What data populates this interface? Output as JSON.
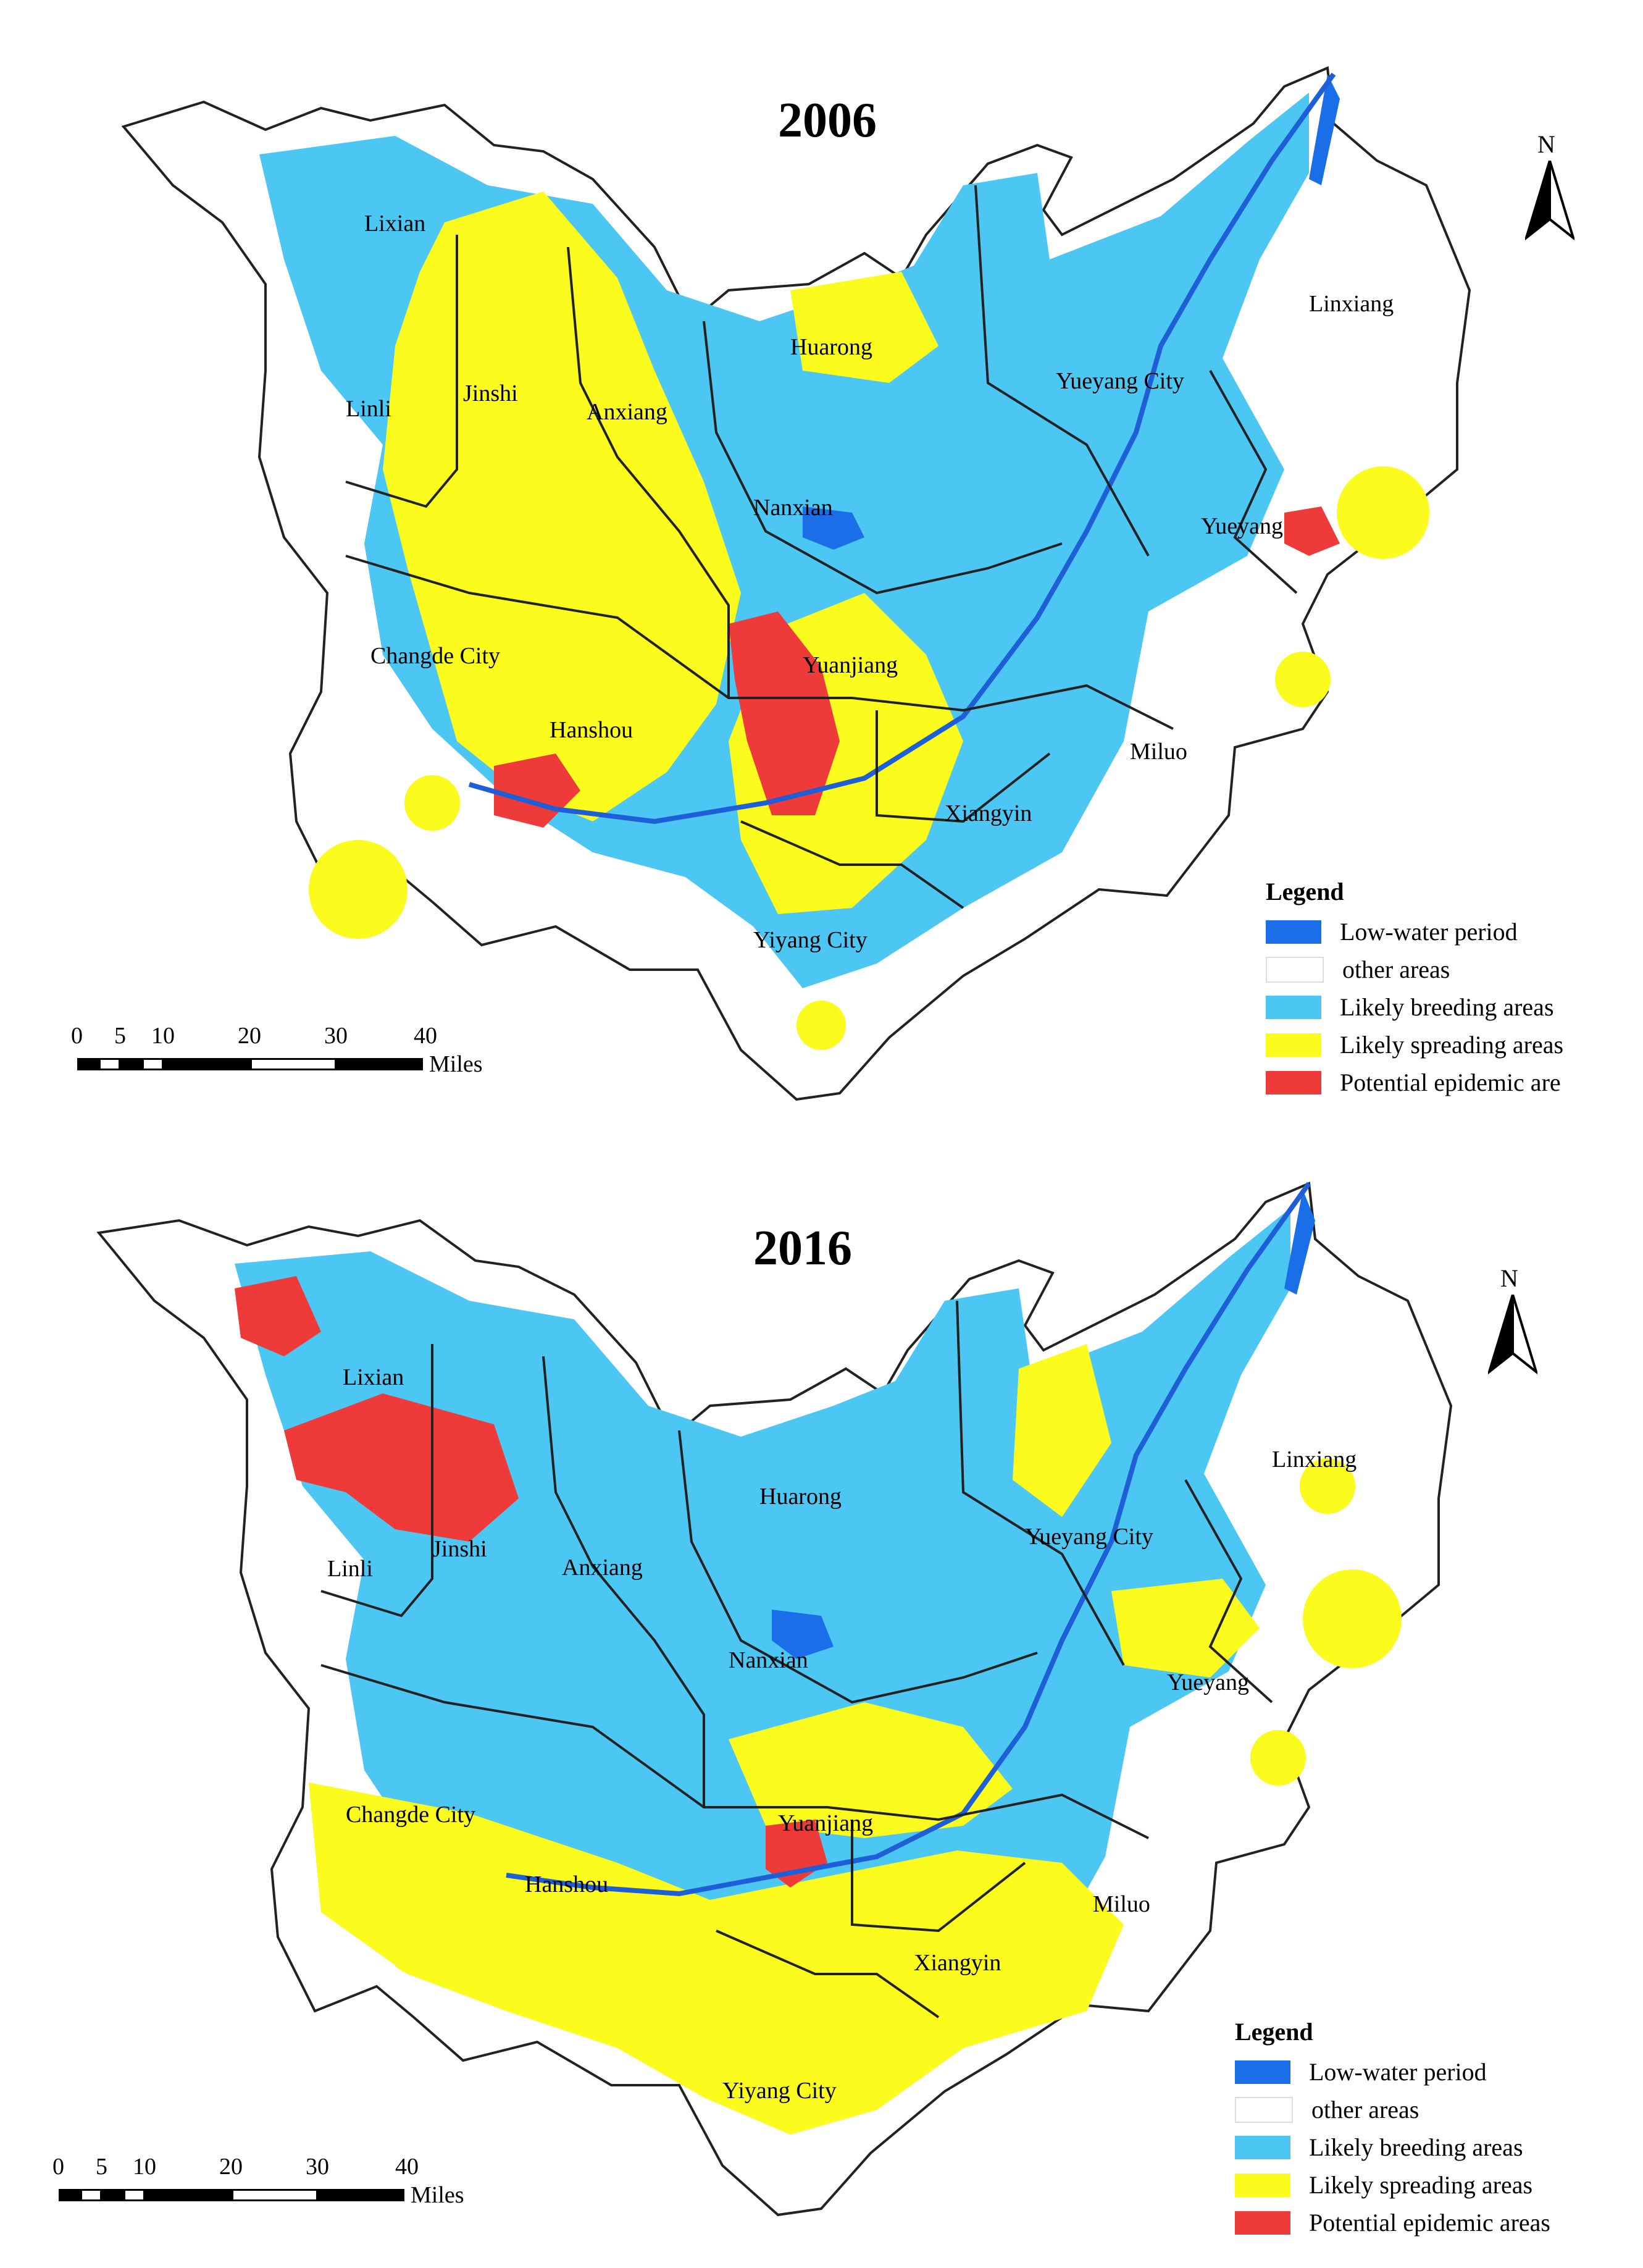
{
  "colors": {
    "low_water": "#1a6ee8",
    "other": "#ffffff",
    "breeding": "#4cc6f2",
    "spreading": "#fbfb1e",
    "epidemic": "#ef3a3a",
    "boundary": "#222222",
    "river": "#1e5fd8"
  },
  "panels": [
    {
      "title": "2006",
      "north": "N",
      "places": [
        "Lixian",
        "Linli",
        "Jinshi",
        "Anxiang",
        "Huarong",
        "Yueyang City",
        "Linxiang",
        "Nanxian",
        "Yueyang",
        "Changde City",
        "Yuanjiang",
        "Hanshou",
        "Miluo",
        "Xiangyin",
        "Yiyang City"
      ],
      "legend": {
        "title": "Legend",
        "items": [
          {
            "label": "Low-water period",
            "color": "low_water"
          },
          {
            "label": "other areas",
            "color": "other"
          },
          {
            "label": "Likely breeding areas",
            "color": "breeding"
          },
          {
            "label": "Likely spreading areas",
            "color": "spreading"
          },
          {
            "label": "Potential epidemic are",
            "color": "epidemic"
          }
        ]
      },
      "scale": {
        "ticks": [
          "0",
          "5",
          "10",
          "20",
          "30",
          "40"
        ],
        "units": "Miles"
      }
    },
    {
      "title": "2016",
      "north": "N",
      "places": [
        "Lixian",
        "Linli",
        "Jinshi",
        "Anxiang",
        "Huarong",
        "Yueyang City",
        "Linxiang",
        "Nanxian",
        "Yueyang",
        "Changde City",
        "Yuanjiang",
        "Hanshou",
        "Miluo",
        "Xiangyin",
        "Yiyang City"
      ],
      "legend": {
        "title": "Legend",
        "items": [
          {
            "label": "Low-water period",
            "color": "low_water"
          },
          {
            "label": "other areas",
            "color": "other"
          },
          {
            "label": "Likely breeding areas",
            "color": "breeding"
          },
          {
            "label": "Likely spreading areas",
            "color": "spreading"
          },
          {
            "label": "Potential epidemic areas",
            "color": "epidemic"
          }
        ]
      },
      "scale": {
        "ticks": [
          "0",
          "5",
          "10",
          "20",
          "30",
          "40"
        ],
        "units": "Miles"
      }
    }
  ]
}
